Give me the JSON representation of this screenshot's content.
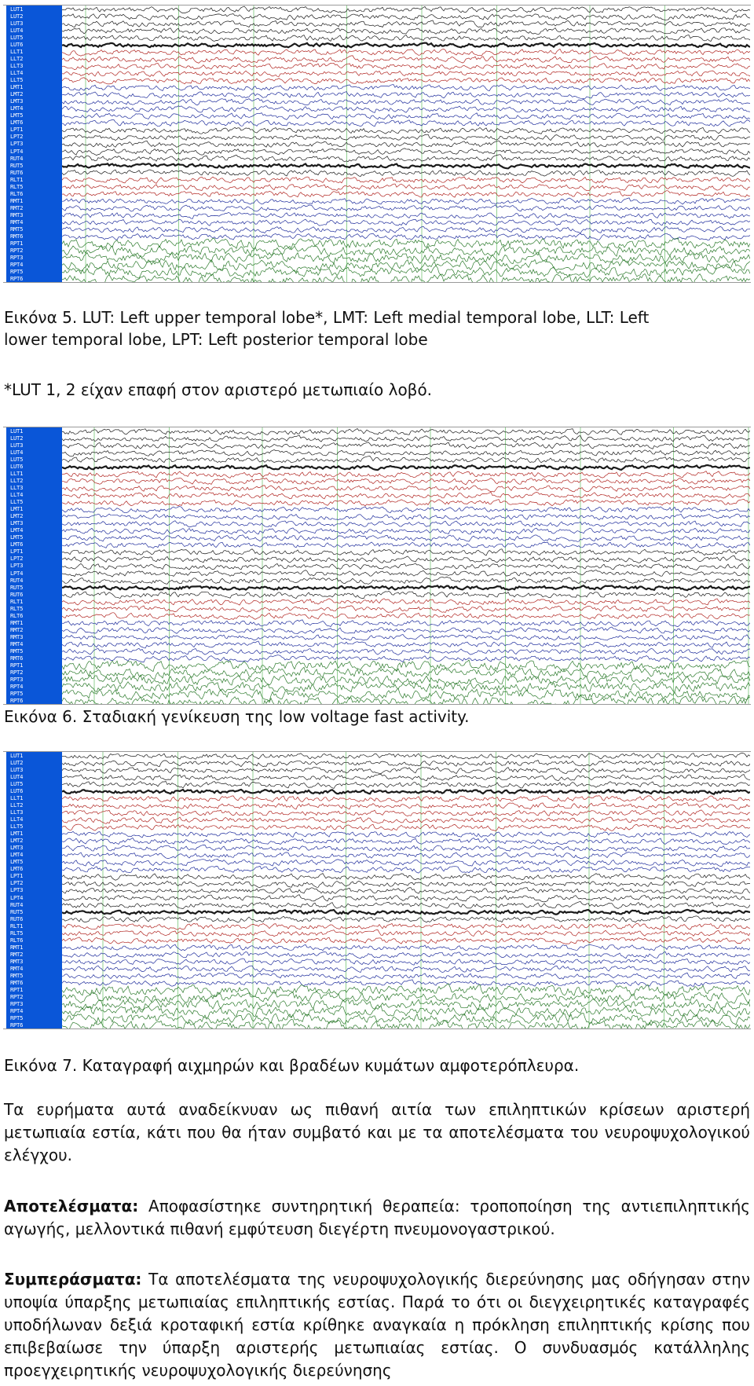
{
  "figures": [
    {
      "caption_lines": [
        "Εικόνα 5. LUT: Left upper temporal lobe*, LMT: Left medial temporal lobe, LLT: Left",
        "lower temporal lobe, LPT: Left posterior temporal lobe"
      ],
      "note": "*LUT 1, 2 είχαν επαφή στον αριστερό μετωπιαίο λοβό."
    },
    {
      "caption": "Εικόνα 6. Σταδιακή γενίκευση της low voltage fast activity."
    },
    {
      "caption": "Εικόνα 7. Καταγραφή αιχμηρών και βραδέων κυμάτων αμφοτερόπλευρα."
    }
  ],
  "channels": [
    "LUT1",
    "LUT2",
    "LUT3",
    "LUT4",
    "LUT5",
    "LUT6",
    "LLT1",
    "LLT2",
    "LLT3",
    "LLT4",
    "LLT5",
    "LMT1",
    "LMT2",
    "LMT3",
    "LMT4",
    "LMT5",
    "LMT6",
    "LPT1",
    "LPT2",
    "LPT3",
    "LPT4",
    "RUT4",
    "RUT5",
    "RUT6",
    "RLT1",
    "RLT5",
    "RLT6",
    "RMT1",
    "RMT2",
    "RMT3",
    "RMT4",
    "RMT5",
    "RMT6",
    "RPT1",
    "RPT2",
    "RPT3",
    "RPT4",
    "RPT5",
    "RPT6"
  ],
  "channel_group_colors": {
    "black": "#1a1a1a",
    "red": "#b0231f",
    "blue": "#1f2d9c",
    "green": "#2b7a2b",
    "marker_green": "#3fae3f",
    "label_bg": "#0a56d8"
  },
  "text": {
    "para1": "Τα ευρήματα αυτά αναδείκνυαν ως πιθανή αιτία των επιληπτικών κρίσεων αριστερή μετωπιαία εστία, κάτι που θα ήταν συμβατό και με τα αποτελέσματα του νευροψυχολογικού ελέγχου.",
    "results_label": "Αποτελέσματα:",
    "results_text": " Αποφασίστηκε συντηρητική θεραπεία: τροποποίηση της αντιεπιληπτικής αγωγής, μελλοντικά πιθανή εμφύτευση διεγέρτη πνευμονογαστρικού.",
    "conclusions_label": "Συμπεράσματα:",
    "conclusions_text": " Τα αποτελέσματα της νευροψυχολογικής διερεύνησης μας οδήγησαν στην υποψία ύπαρξης μετωπιαίας επιληπτικής εστίας.  Παρά το ότι οι διεγχειρητικές καταγραφές υποδήλωναν δεξιά κροταφική εστία κρίθηκε αναγκαία η πρόκληση επιληπτικής κρίσης που επιβεβαίωσε την ύπαρξη αριστερής μετωπιαίας εστίας. Ο συνδυασμός κατάλληλης προεγχειρητικής νευροψυχολογικής διερεύνησης"
  }
}
